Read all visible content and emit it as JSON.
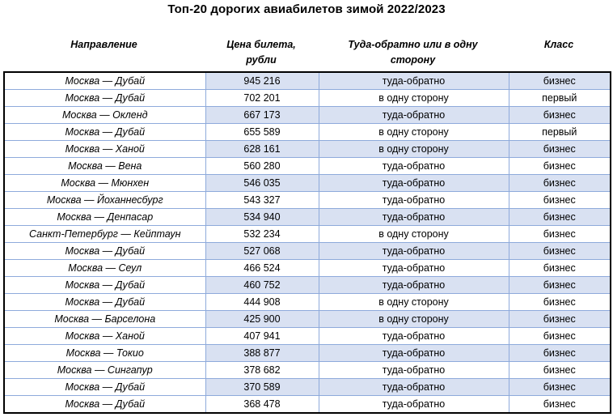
{
  "title": "Топ-20 дорогих авиабилетов зимой 2022/2023",
  "colors": {
    "band": "#D9E1F2",
    "grid": "#8EAADB",
    "outer_border": "#000000",
    "text": "#000000"
  },
  "chart_data": {
    "type": "table",
    "title": "Топ-20 дорогих авиабилетов зимой 2022/2023",
    "columns": [
      "Направление",
      "Цена билета, рубли",
      "Туда-обратно или в одну сторону",
      "Класс"
    ],
    "rows": [
      [
        "Москва — Дубай",
        "945 216",
        "туда-обратно",
        "бизнес"
      ],
      [
        "Москва — Дубай",
        "702 201",
        "в одну сторону",
        "первый"
      ],
      [
        "Москва — Окленд",
        "667 173",
        "туда-обратно",
        "бизнес"
      ],
      [
        "Москва — Дубай",
        "655 589",
        "в одну сторону",
        "первый"
      ],
      [
        "Москва — Ханой",
        "628 161",
        "в одну сторону",
        "бизнес"
      ],
      [
        "Москва — Вена",
        "560 280",
        "туда-обратно",
        "бизнес"
      ],
      [
        "Москва — Мюнхен",
        "546 035",
        "туда-обратно",
        "бизнес"
      ],
      [
        "Москва — Йоханнесбург",
        "543 327",
        "туда-обратно",
        "бизнес"
      ],
      [
        "Москва — Денпасар",
        "534 940",
        "туда-обратно",
        "бизнес"
      ],
      [
        "Санкт-Петербург — Кейптаун",
        "532 234",
        "в одну сторону",
        "бизнес"
      ],
      [
        "Москва — Дубай",
        "527 068",
        "туда-обратно",
        "бизнес"
      ],
      [
        "Москва — Сеул",
        "466 524",
        "туда-обратно",
        "бизнес"
      ],
      [
        "Москва — Дубай",
        "460 752",
        "туда-обратно",
        "бизнес"
      ],
      [
        "Москва — Дубай",
        "444 908",
        "в одну сторону",
        "бизнес"
      ],
      [
        "Москва — Барселона",
        "425 900",
        "в одну сторону",
        "бизнес"
      ],
      [
        "Москва — Ханой",
        "407 941",
        "туда-обратно",
        "бизнес"
      ],
      [
        "Москва — Токио",
        "388 877",
        "туда-обратно",
        "бизнес"
      ],
      [
        "Москва — Сингапур",
        "378 682",
        "туда-обратно",
        "бизнес"
      ],
      [
        "Москва — Дубай",
        "370 589",
        "туда-обратно",
        "бизнес"
      ],
      [
        "Москва — Дубай",
        "368 478",
        "туда-обратно",
        "бизнес"
      ]
    ],
    "banding": "odd rows (1st, 3rd, ...) have light blue fill in columns 2-4",
    "legend_position": "none",
    "grid": true
  }
}
